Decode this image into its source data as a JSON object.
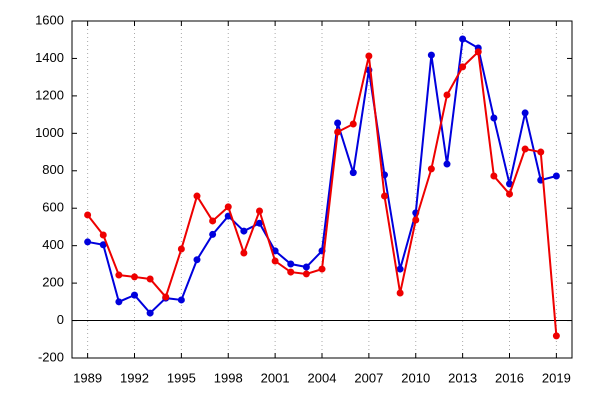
{
  "chart_data": {
    "type": "line",
    "x": [
      1989,
      1990,
      1991,
      1992,
      1993,
      1994,
      1995,
      1996,
      1997,
      1998,
      1999,
      2000,
      2001,
      2002,
      2003,
      2004,
      2005,
      2006,
      2007,
      2008,
      2009,
      2010,
      2011,
      2012,
      2013,
      2014,
      2015,
      2016,
      2017,
      2018,
      2019
    ],
    "series": [
      {
        "color": "#0000dd",
        "values": [
          420,
          405,
          100,
          136,
          40,
          120,
          110,
          325,
          460,
          558,
          478,
          520,
          372,
          302,
          286,
          372,
          1055,
          790,
          1338,
          778,
          275,
          575,
          1418,
          836,
          1504,
          1456,
          1082,
          730,
          1109,
          750,
          772
        ]
      },
      {
        "color": "#ee0000",
        "values": [
          564,
          457,
          243,
          233,
          222,
          126,
          382,
          665,
          532,
          607,
          361,
          585,
          318,
          259,
          249,
          275,
          1007,
          1050,
          1413,
          665,
          147,
          537,
          810,
          1205,
          1355,
          1435,
          772,
          676,
          916,
          900,
          -82
        ]
      }
    ],
    "xlim": [
      1988,
      2020
    ],
    "xticks": [
      1989,
      1992,
      1995,
      1998,
      2001,
      2004,
      2007,
      2010,
      2013,
      2016,
      2019
    ],
    "ylim": [
      -200,
      1600
    ],
    "yticks": [
      -200,
      0,
      200,
      400,
      600,
      800,
      1000,
      1200,
      1400,
      1600
    ],
    "grid": "x",
    "zero_line": true
  }
}
